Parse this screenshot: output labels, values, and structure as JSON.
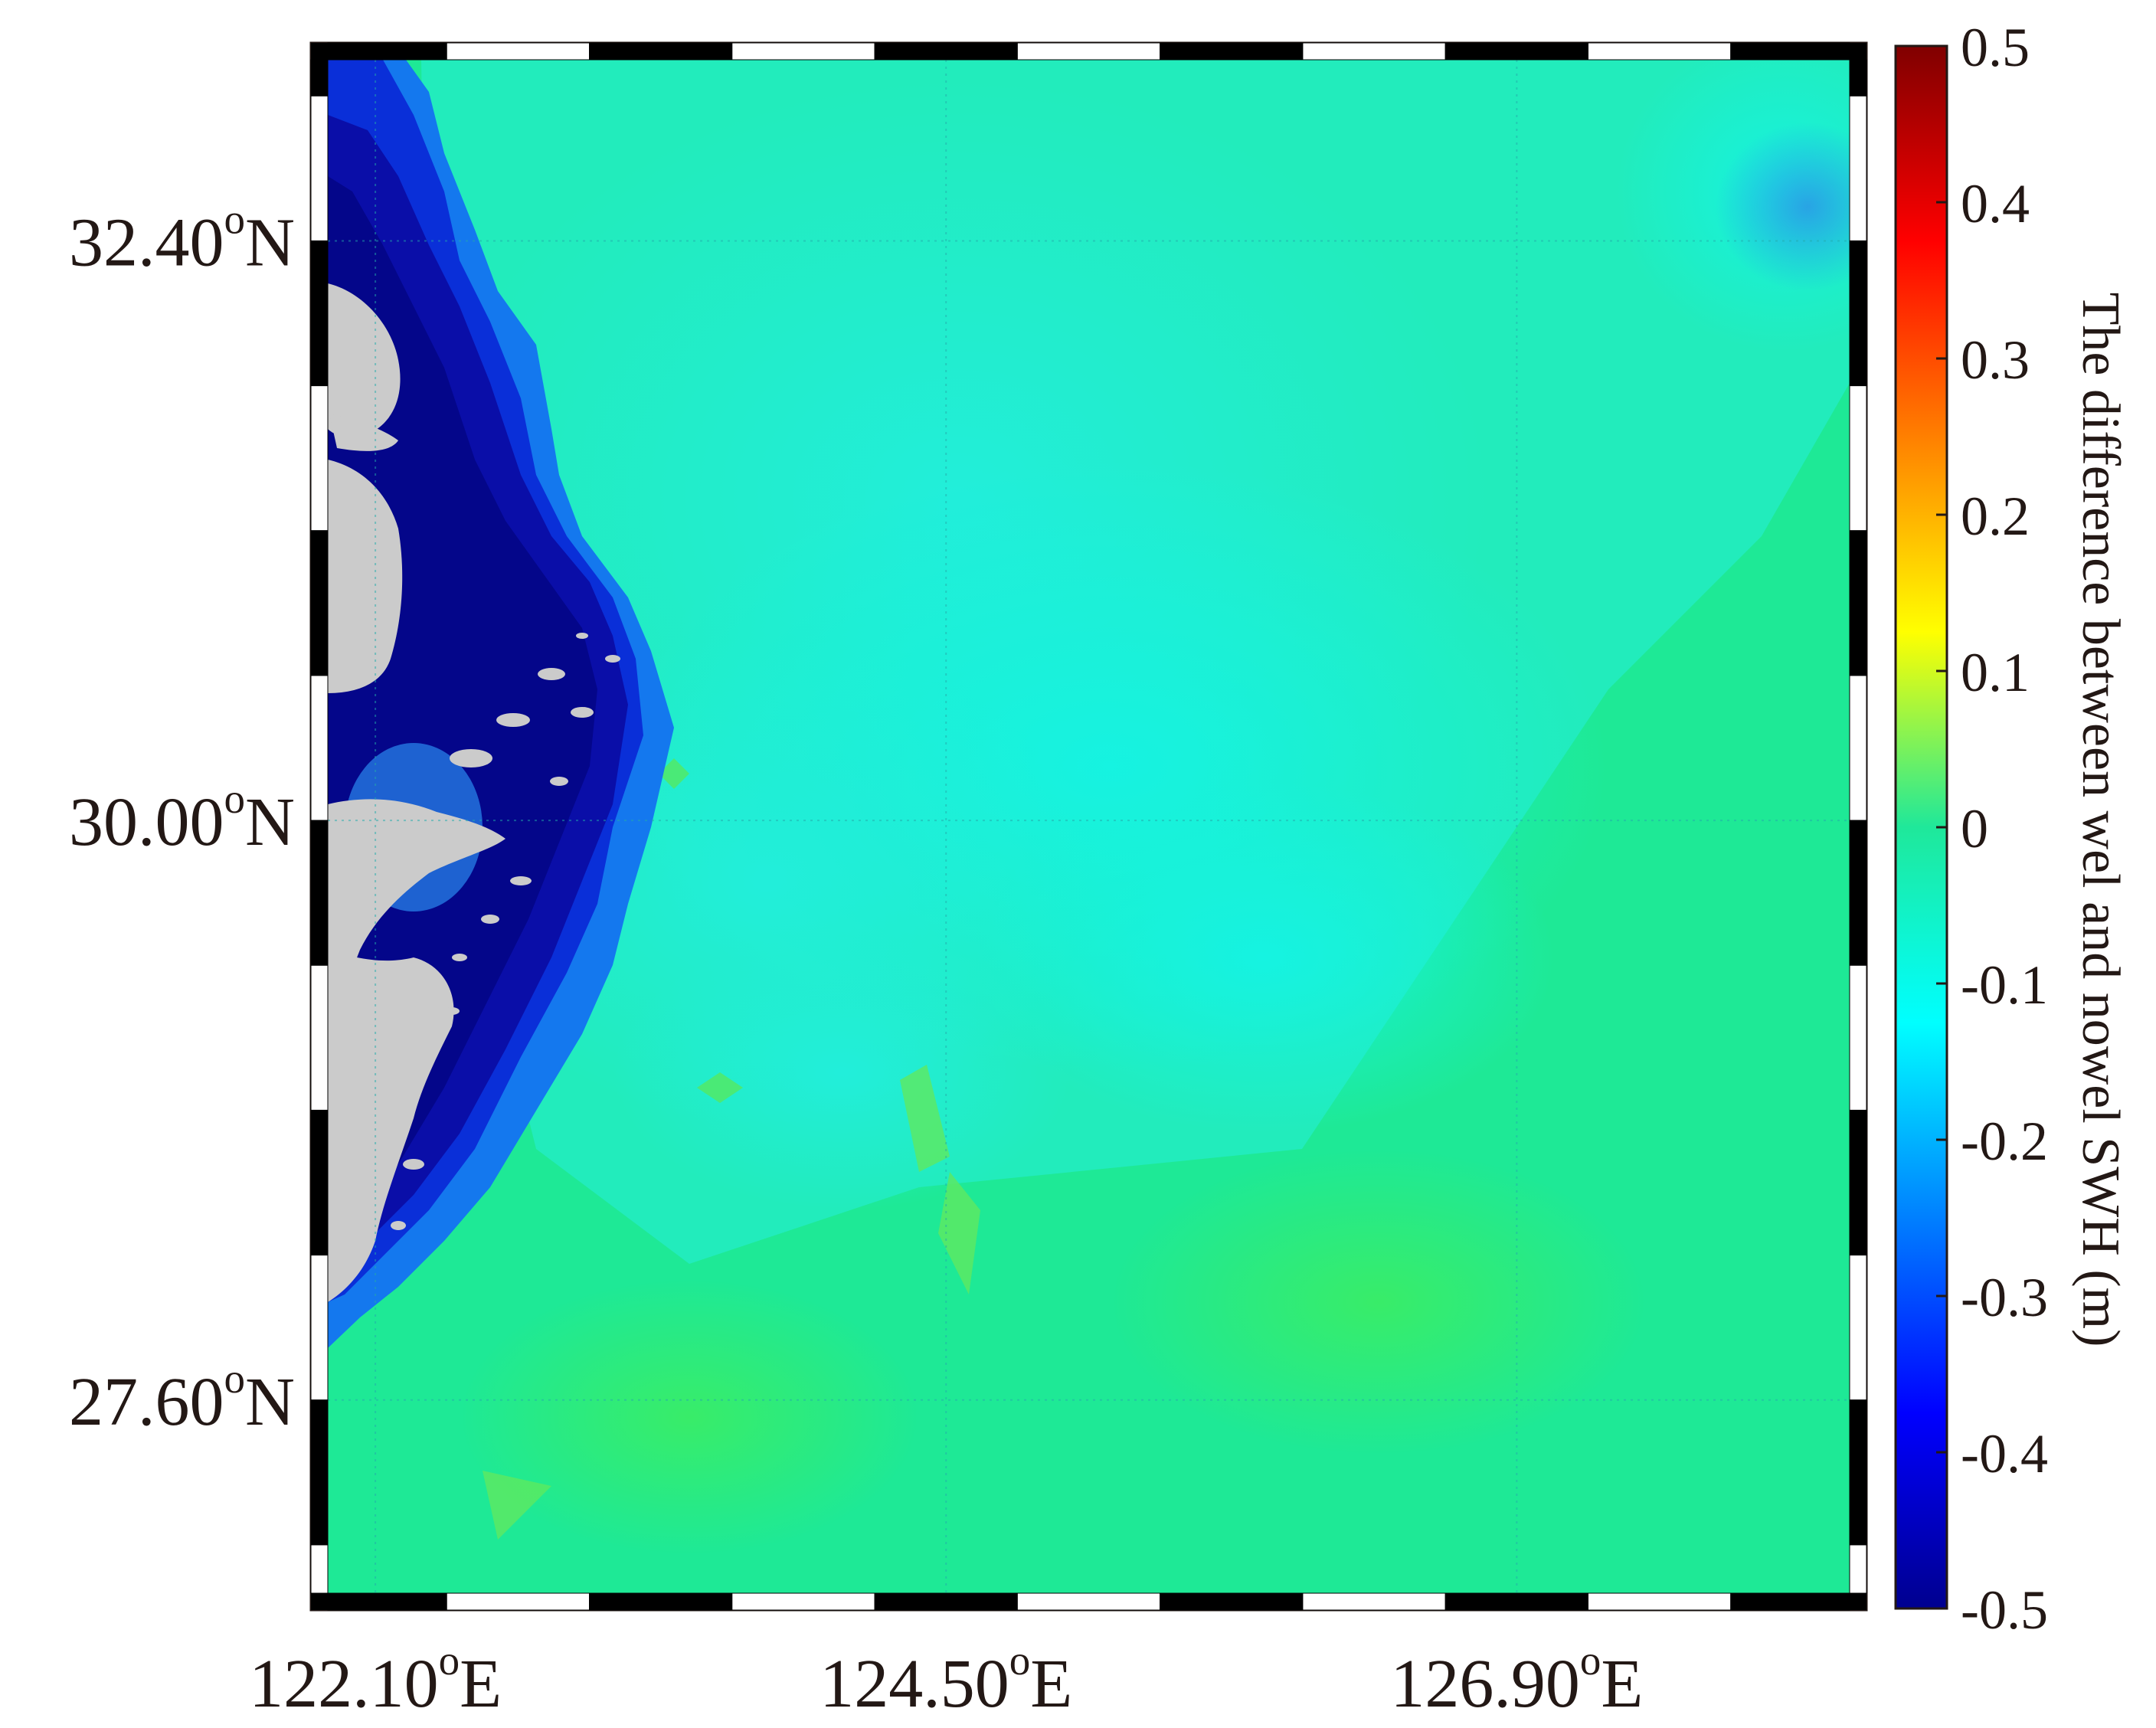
{
  "map": {
    "x_tick_labels": [
      {
        "deg": "122.10",
        "unit": "E",
        "lon": 122.1
      },
      {
        "deg": "124.50",
        "unit": "E",
        "lon": 124.5
      },
      {
        "deg": "126.90",
        "unit": "E",
        "lon": 126.9
      }
    ],
    "y_tick_labels": [
      {
        "deg": "32.40",
        "unit": "N",
        "lat": 32.4
      },
      {
        "deg": "30.00",
        "unit": "N",
        "lat": 30.0
      },
      {
        "deg": "27.60",
        "unit": "N",
        "lat": 27.6
      }
    ],
    "degree_symbol": "o",
    "extent": {
      "lon_min": 121.9,
      "lon_max": 128.3,
      "lat_min": 26.8,
      "lat_max": 33.15
    },
    "land_color": "#cccccc",
    "ocean_background_color": "#1fe89a"
  },
  "colorbar": {
    "label": "The difference between wel and nowel SWH (m)",
    "tick_labels": [
      "0.5",
      "0.4",
      "0.3",
      "0.2",
      "0.1",
      "0",
      "-0.1",
      "-0.2",
      "-0.3",
      "-0.4",
      "-0.5"
    ],
    "min": -0.5,
    "max": 0.5,
    "colormap": "jet"
  }
}
